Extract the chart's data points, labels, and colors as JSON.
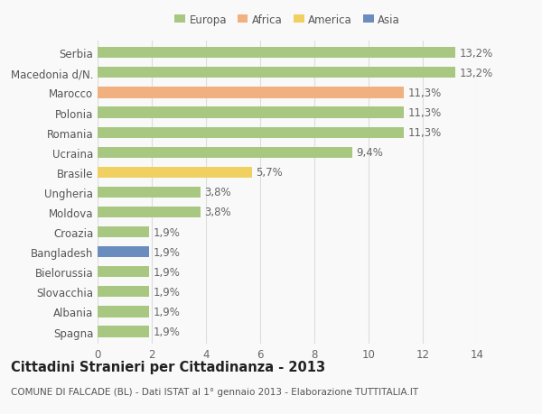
{
  "categories": [
    "Spagna",
    "Albania",
    "Slovacchia",
    "Bielorussia",
    "Bangladesh",
    "Croazia",
    "Moldova",
    "Ungheria",
    "Brasile",
    "Ucraina",
    "Romania",
    "Polonia",
    "Marocco",
    "Macedonia d/N.",
    "Serbia"
  ],
  "values": [
    1.9,
    1.9,
    1.9,
    1.9,
    1.9,
    1.9,
    3.8,
    3.8,
    5.7,
    9.4,
    11.3,
    11.3,
    11.3,
    13.2,
    13.2
  ],
  "labels": [
    "1,9%",
    "1,9%",
    "1,9%",
    "1,9%",
    "1,9%",
    "1,9%",
    "3,8%",
    "3,8%",
    "5,7%",
    "9,4%",
    "11,3%",
    "11,3%",
    "11,3%",
    "13,2%",
    "13,2%"
  ],
  "colors": [
    "#a8c882",
    "#a8c882",
    "#a8c882",
    "#a8c882",
    "#6b8cbf",
    "#a8c882",
    "#a8c882",
    "#a8c882",
    "#f0d060",
    "#a8c882",
    "#a8c882",
    "#a8c882",
    "#f0b080",
    "#a8c882",
    "#a8c882"
  ],
  "legend_labels": [
    "Europa",
    "Africa",
    "America",
    "Asia"
  ],
  "legend_colors": [
    "#a8c882",
    "#f0b080",
    "#f0d060",
    "#6b8cbf"
  ],
  "title": "Cittadini Stranieri per Cittadinanza - 2013",
  "subtitle": "COMUNE DI FALCADE (BL) - Dati ISTAT al 1° gennaio 2013 - Elaborazione TUTTITALIA.IT",
  "xlim": [
    0,
    14
  ],
  "xticks": [
    0,
    2,
    4,
    6,
    8,
    10,
    12,
    14
  ],
  "background_color": "#f9f9f9",
  "grid_color": "#dddddd",
  "bar_height": 0.55,
  "label_fontsize": 8.5,
  "tick_fontsize": 8.5,
  "title_fontsize": 10.5,
  "subtitle_fontsize": 7.5
}
